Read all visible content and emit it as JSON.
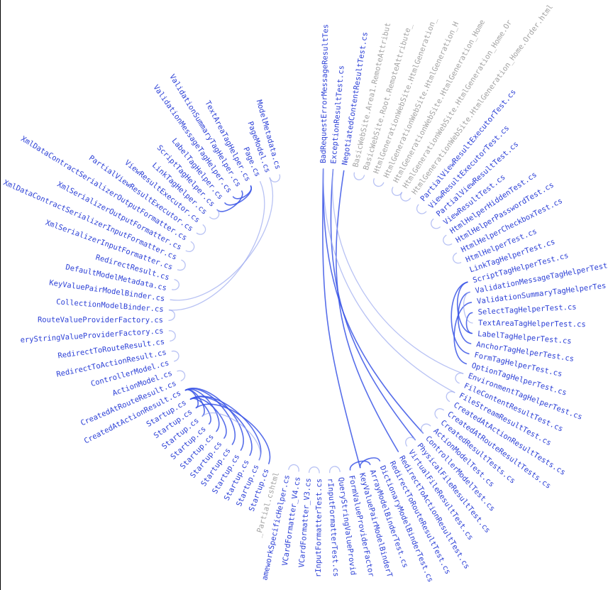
{
  "colors": {
    "label_active": "#2b3fd6",
    "label_dim": "#a3a3a3",
    "edge_strong": "#3a55e6",
    "edge_light": "#9aa8f0"
  },
  "nodes": [
    {
      "label": "BadRequestErrorMessageResultTes",
      "angle": -89,
      "state": "active"
    },
    {
      "label": "ExceptionResultTest.cs",
      "angle": -85.3,
      "state": "active"
    },
    {
      "label": "NegotiatedContentResultTest.cs",
      "angle": -81.2,
      "state": "active"
    },
    {
      "label": "BasicWebSite.Area1.RemoteAttribut",
      "angle": -77.2,
      "state": "dim"
    },
    {
      "label": "BasicWebSite.Root.RemoteAttribute_",
      "angle": -73.3,
      "state": "dim"
    },
    {
      "label": "HtmlGenerationWebSite.HtmlGeneration_",
      "angle": -69.4,
      "state": "dim"
    },
    {
      "label": "HtmlGenerationWebSite.HtmlGeneration_H",
      "angle": -65.5,
      "state": "dim"
    },
    {
      "label": "HtmlGenerationWebSite.HtmlGeneration_Home",
      "angle": -61.6,
      "state": "dim"
    },
    {
      "label": "HtmlGenerationWebSite.HtmlGeneration_Home.Or",
      "angle": -57.7,
      "state": "dim"
    },
    {
      "label": "HtmlGenerationWebSite.HtmlGeneration_Home.Order.html",
      "angle": -53.8,
      "state": "dim"
    },
    {
      "label": "PartialViewResultExecutorTest.cs",
      "angle": -49.9,
      "state": "active"
    },
    {
      "label": "ViewResultExecutorTest.cs",
      "angle": -46.0,
      "state": "active"
    },
    {
      "label": "PartialViewResultTest.cs",
      "angle": -42.1,
      "state": "active"
    },
    {
      "label": "ViewResultTest.cs",
      "angle": -38.2,
      "state": "active"
    },
    {
      "label": "HtmlHelperHiddenTest.cs",
      "angle": -34.3,
      "state": "active"
    },
    {
      "label": "HtmlHelperPasswordTest.cs",
      "angle": -30.4,
      "state": "active"
    },
    {
      "label": "HtmlHelperCheckboxTest.cs",
      "angle": -26.5,
      "state": "active"
    },
    {
      "label": "HtmlHelperTest.cs",
      "angle": -22.6,
      "state": "active"
    },
    {
      "label": "LinkTagHelperTest.cs",
      "angle": -18.7,
      "state": "active"
    },
    {
      "label": "ScriptTagHelperTest.cs",
      "angle": -14.8,
      "state": "active"
    },
    {
      "label": "ValidationMessageTagHelperTest",
      "angle": -10.9,
      "state": "active"
    },
    {
      "label": "ValidationSummaryTagHelperTes",
      "angle": -7.0,
      "state": "active"
    },
    {
      "label": "SelectTagHelperTest.cs",
      "angle": -3.1,
      "state": "active"
    },
    {
      "label": "TextAreaTagHelperTest.cs",
      "angle": 0.8,
      "state": "active"
    },
    {
      "label": "LabelTagHelperTest.cs",
      "angle": 4.7,
      "state": "active"
    },
    {
      "label": "AnchorTagHelperTest.cs",
      "angle": 8.6,
      "state": "active"
    },
    {
      "label": "FormTagHelperTest.cs",
      "angle": 12.5,
      "state": "active"
    },
    {
      "label": "OptionTagHelperTest.cs",
      "angle": 16.4,
      "state": "active"
    },
    {
      "label": "EnvironmentTagHelperTest.cs",
      "angle": 20.3,
      "state": "active"
    },
    {
      "label": "FileContentResultTest.cs",
      "angle": 24.2,
      "state": "active"
    },
    {
      "label": "FileStreamResultTest.cs",
      "angle": 28.1,
      "state": "active"
    },
    {
      "label": "CreatedAtActionResultTests.cs",
      "angle": 32.0,
      "state": "active"
    },
    {
      "label": "CreatedAtRouteResultTests.cs",
      "angle": 35.9,
      "state": "active"
    },
    {
      "label": "CreatedResultTests.cs",
      "angle": 39.8,
      "state": "active"
    },
    {
      "label": "ActionModelTest.cs",
      "angle": 43.7,
      "state": "active"
    },
    {
      "label": "ControllerModelTest.cs",
      "angle": 47.6,
      "state": "active"
    },
    {
      "label": "PhysicalFileResultTest.cs",
      "angle": 51.5,
      "state": "active"
    },
    {
      "label": "VirtualFileResultTest.cs",
      "angle": 55.4,
      "state": "active"
    },
    {
      "label": "RedirectToActionResultTest.cs",
      "angle": 59.3,
      "state": "active"
    },
    {
      "label": "RedirectToRouteResultTest.cs",
      "angle": 63.2,
      "state": "active"
    },
    {
      "label": "DictionaryModelBinderTest.cs",
      "angle": 67.1,
      "state": "active"
    },
    {
      "label": "ArrayModelBinderTest.cs",
      "angle": 71.0,
      "state": "active"
    },
    {
      "label": "KeyValuePairModelBinderT",
      "angle": 74.9,
      "state": "active"
    },
    {
      "label": "FormValueProviderFactor",
      "angle": 78.8,
      "state": "active"
    },
    {
      "label": "QueryStringValueProvid",
      "angle": 82.7,
      "state": "active"
    },
    {
      "label": "rInputFormatterTest.cs",
      "angle": 86.6,
      "state": "active"
    },
    {
      "label": "rInputFormatterTest.cs",
      "angle": 90.5,
      "state": "active"
    },
    {
      "label": "VCardFormatter_V3.cs",
      "angle": 94.4,
      "state": "active"
    },
    {
      "label": "VCardFormatter_V4.cs",
      "angle": 98.3,
      "state": "active"
    },
    {
      "label": "ameworkSpecificHelper.cs",
      "angle": 102.2,
      "state": "active"
    },
    {
      "label": "_Partial.cshtml",
      "angle": 106.1,
      "state": "dim"
    },
    {
      "label": "Startup.cs",
      "angle": 110.0,
      "state": "active"
    },
    {
      "label": "Startup.cs",
      "angle": 113.9,
      "state": "active"
    },
    {
      "label": "Startup.cs",
      "angle": 117.8,
      "state": "active"
    },
    {
      "label": "Startup.cs",
      "angle": 121.7,
      "state": "active"
    },
    {
      "label": "Startup.cs",
      "angle": 125.6,
      "state": "active"
    },
    {
      "label": "Startup.cs",
      "angle": 129.5,
      "state": "active"
    },
    {
      "label": "Startup.cs",
      "angle": 133.4,
      "state": "active"
    },
    {
      "label": "Startup.cs",
      "angle": 137.3,
      "state": "active"
    },
    {
      "label": "Startup.cs",
      "angle": 141.2,
      "state": "active"
    },
    {
      "label": "Startup.cs",
      "angle": 145.1,
      "state": "active"
    },
    {
      "label": "Startup.cs",
      "angle": 149.0,
      "state": "active"
    },
    {
      "label": "CreatedAtActionResult.cs",
      "angle": 152.9,
      "state": "active"
    },
    {
      "label": "CreatedAtRouteResult.cs",
      "angle": 156.8,
      "state": "active"
    },
    {
      "label": "ActionModel.cs",
      "angle": 160.7,
      "state": "active"
    },
    {
      "label": "ControllerModel.cs",
      "angle": 164.6,
      "state": "active"
    },
    {
      "label": "RedirectToActionResult.cs",
      "angle": 168.5,
      "state": "active"
    },
    {
      "label": "RedirectToRouteResult.cs",
      "angle": 172.4,
      "state": "active"
    },
    {
      "label": "eryStringValueProviderFactory.cs",
      "angle": 176.3,
      "state": "active"
    },
    {
      "label": "RouteValueProviderFactory.cs",
      "angle": 180.2,
      "state": "active"
    },
    {
      "label": "CollectionModelBinder.cs",
      "angle": 184.1,
      "state": "active"
    },
    {
      "label": "KeyValuePairModelBinder.cs",
      "angle": 188.0,
      "state": "active"
    },
    {
      "label": "DefaultModelMetadata.cs",
      "angle": 191.9,
      "state": "active"
    },
    {
      "label": "RedirectResult.cs",
      "angle": 195.8,
      "state": "active"
    },
    {
      "label": "XmlSerializerInputFormatter.cs",
      "angle": 199.7,
      "state": "active"
    },
    {
      "label": "XmlDataContractSerializerInputFormatter.cs",
      "angle": 203.6,
      "state": "active"
    },
    {
      "label": "XmlSerializerOutputFormatter.cs",
      "angle": 207.5,
      "state": "active"
    },
    {
      "label": "XmlDataContractSerializerOutputFormatter.cs",
      "angle": 211.4,
      "state": "active"
    },
    {
      "label": "PartialViewResultExecutor.cs",
      "angle": 215.3,
      "state": "active"
    },
    {
      "label": "ViewResultExecutor.cs",
      "angle": 219.2,
      "state": "active"
    },
    {
      "label": "LinkTagHelper.cs",
      "angle": 223.1,
      "state": "active"
    },
    {
      "label": "ScriptTagHelper.cs",
      "angle": 227.0,
      "state": "active"
    },
    {
      "label": "LabelTagHelper.cs",
      "angle": 230.9,
      "state": "active"
    },
    {
      "label": "ValidationMessageTagHelper.cs",
      "angle": 234.8,
      "state": "active"
    },
    {
      "label": "ValidationSummaryTagHelper.cs",
      "angle": 238.7,
      "state": "active"
    },
    {
      "label": "TextAreaTagHelper.cs",
      "angle": 242.6,
      "state": "active"
    },
    {
      "label": "Page.cs",
      "angle": 246.5,
      "state": "active"
    },
    {
      "label": "PageModel.cs",
      "angle": 250.4,
      "state": "active"
    },
    {
      "label": "ModelMetadata.cs",
      "angle": 254.3,
      "state": "active"
    }
  ],
  "links": [
    {
      "source": 0,
      "target": 35,
      "strength": "strong"
    },
    {
      "source": 0,
      "target": 42,
      "strength": "strong"
    },
    {
      "source": 1,
      "target": 36,
      "strength": "strong"
    },
    {
      "source": 2,
      "target": 38,
      "strength": "strong"
    },
    {
      "source": 0,
      "target": 30,
      "strength": "light"
    },
    {
      "source": 1,
      "target": 28,
      "strength": "light"
    },
    {
      "source": 86,
      "target": 70,
      "strength": "light"
    },
    {
      "source": 87,
      "target": 71,
      "strength": "light"
    },
    {
      "source": 19,
      "target": 24,
      "strength": "strong"
    },
    {
      "source": 19,
      "target": 26,
      "strength": "strong"
    },
    {
      "source": 20,
      "target": 25,
      "strength": "strong"
    },
    {
      "source": 21,
      "target": 27,
      "strength": "strong"
    },
    {
      "source": 22,
      "target": 24,
      "strength": "strong"
    },
    {
      "source": 20,
      "target": 23,
      "strength": "light"
    },
    {
      "source": 51,
      "target": 60,
      "strength": "strong"
    },
    {
      "source": 52,
      "target": 61,
      "strength": "strong"
    },
    {
      "source": 53,
      "target": 61,
      "strength": "strong"
    },
    {
      "source": 54,
      "target": 62,
      "strength": "strong"
    },
    {
      "source": 55,
      "target": 62,
      "strength": "strong"
    },
    {
      "source": 56,
      "target": 61,
      "strength": "strong"
    },
    {
      "source": 57,
      "target": 62,
      "strength": "strong"
    },
    {
      "source": 58,
      "target": 61,
      "strength": "strong"
    },
    {
      "source": 59,
      "target": 62,
      "strength": "strong"
    },
    {
      "source": 60,
      "target": 62,
      "strength": "strong"
    },
    {
      "source": 52,
      "target": 59,
      "strength": "light"
    },
    {
      "source": 81,
      "target": 84,
      "strength": "strong"
    },
    {
      "source": 82,
      "target": 85,
      "strength": "strong"
    },
    {
      "source": 83,
      "target": 85,
      "strength": "strong"
    },
    {
      "source": 40,
      "target": 42,
      "strength": "strong"
    },
    {
      "source": 41,
      "target": 43,
      "strength": "strong"
    },
    {
      "source": 3,
      "target": 4,
      "strength": "light"
    },
    {
      "source": 5,
      "target": 6,
      "strength": "light"
    },
    {
      "source": 7,
      "target": 8,
      "strength": "light"
    },
    {
      "source": 8,
      "target": 9,
      "strength": "light"
    },
    {
      "source": 10,
      "target": 11,
      "strength": "light"
    },
    {
      "source": 12,
      "target": 13,
      "strength": "light"
    },
    {
      "source": 14,
      "target": 15,
      "strength": "light"
    },
    {
      "source": 16,
      "target": 17,
      "strength": "light"
    },
    {
      "source": 28,
      "target": 29,
      "strength": "light"
    },
    {
      "source": 30,
      "target": 31,
      "strength": "light"
    },
    {
      "source": 32,
      "target": 33,
      "strength": "light"
    },
    {
      "source": 34,
      "target": 35,
      "strength": "light"
    },
    {
      "source": 36,
      "target": 37,
      "strength": "light"
    },
    {
      "source": 44,
      "target": 45,
      "strength": "light"
    },
    {
      "source": 46,
      "target": 47,
      "strength": "light"
    },
    {
      "source": 48,
      "target": 49,
      "strength": "light"
    },
    {
      "source": 63,
      "target": 64,
      "strength": "light"
    },
    {
      "source": 65,
      "target": 66,
      "strength": "light"
    },
    {
      "source": 67,
      "target": 68,
      "strength": "light"
    },
    {
      "source": 69,
      "target": 70,
      "strength": "light"
    },
    {
      "source": 72,
      "target": 73,
      "strength": "light"
    },
    {
      "source": 74,
      "target": 75,
      "strength": "light"
    },
    {
      "source": 76,
      "target": 77,
      "strength": "light"
    },
    {
      "source": 78,
      "target": 79,
      "strength": "light"
    },
    {
      "source": 80,
      "target": 81,
      "strength": "light"
    },
    {
      "source": 87,
      "target": 88,
      "strength": "light"
    }
  ]
}
